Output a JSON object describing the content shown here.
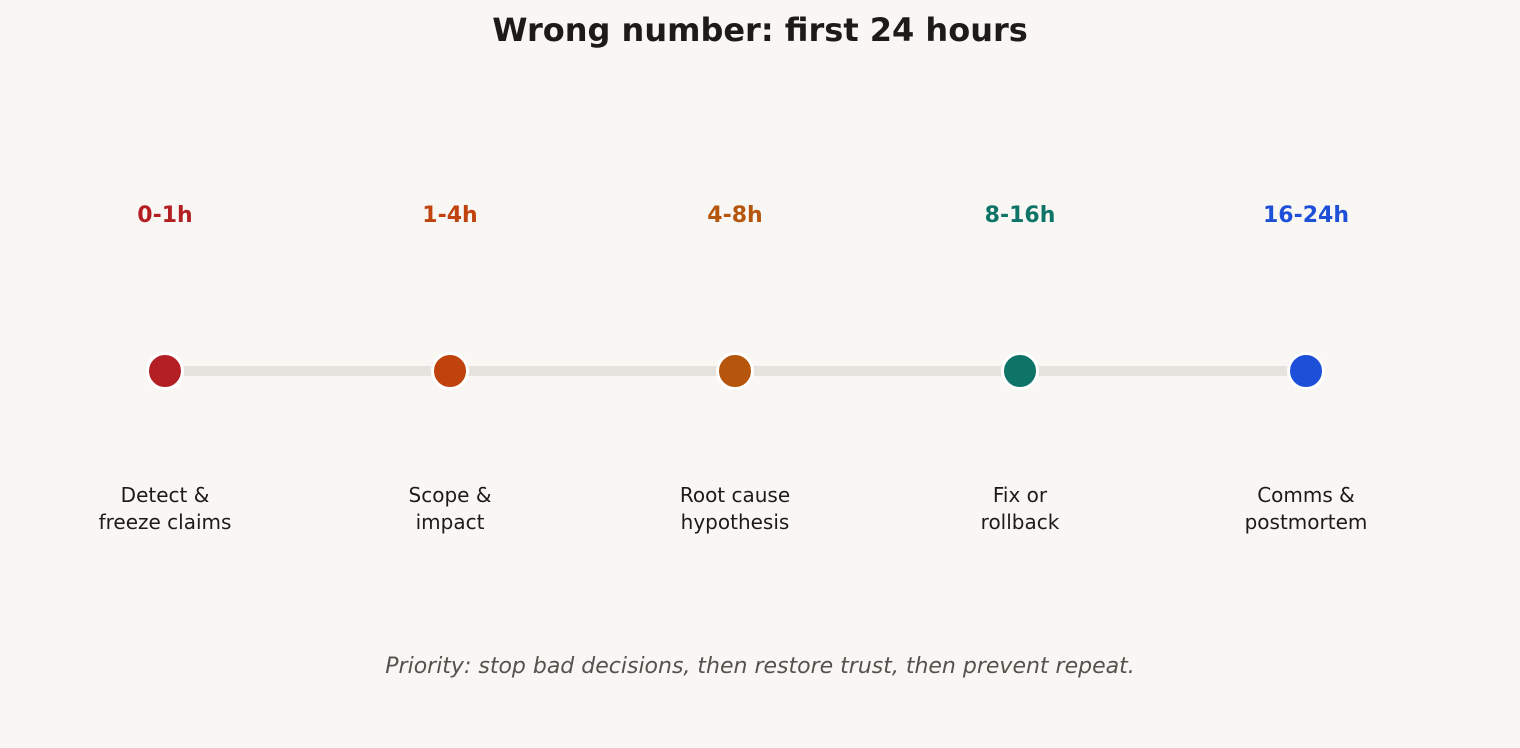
{
  "title": "Wrong number: first 24 hours",
  "stages": [
    {
      "time": "0-1h",
      "label_lines": [
        "Detect &",
        "freeze claims"
      ],
      "color": "#b41f24"
    },
    {
      "time": "1-4h",
      "label_lines": [
        "Scope &",
        "impact"
      ],
      "color": "#c0430e"
    },
    {
      "time": "4-8h",
      "label_lines": [
        "Root cause",
        "hypothesis"
      ],
      "color": "#b5560c"
    },
    {
      "time": "8-16h",
      "label_lines": [
        "Fix or",
        "rollback"
      ],
      "color": "#0f7468"
    },
    {
      "time": "16-24h",
      "label_lines": [
        "Comms &",
        "postmortem"
      ],
      "color": "#1d4fd8"
    }
  ],
  "track_color": "#e6e3df",
  "footer": "Priority: stop bad decisions, then restore trust, then prevent repeat."
}
